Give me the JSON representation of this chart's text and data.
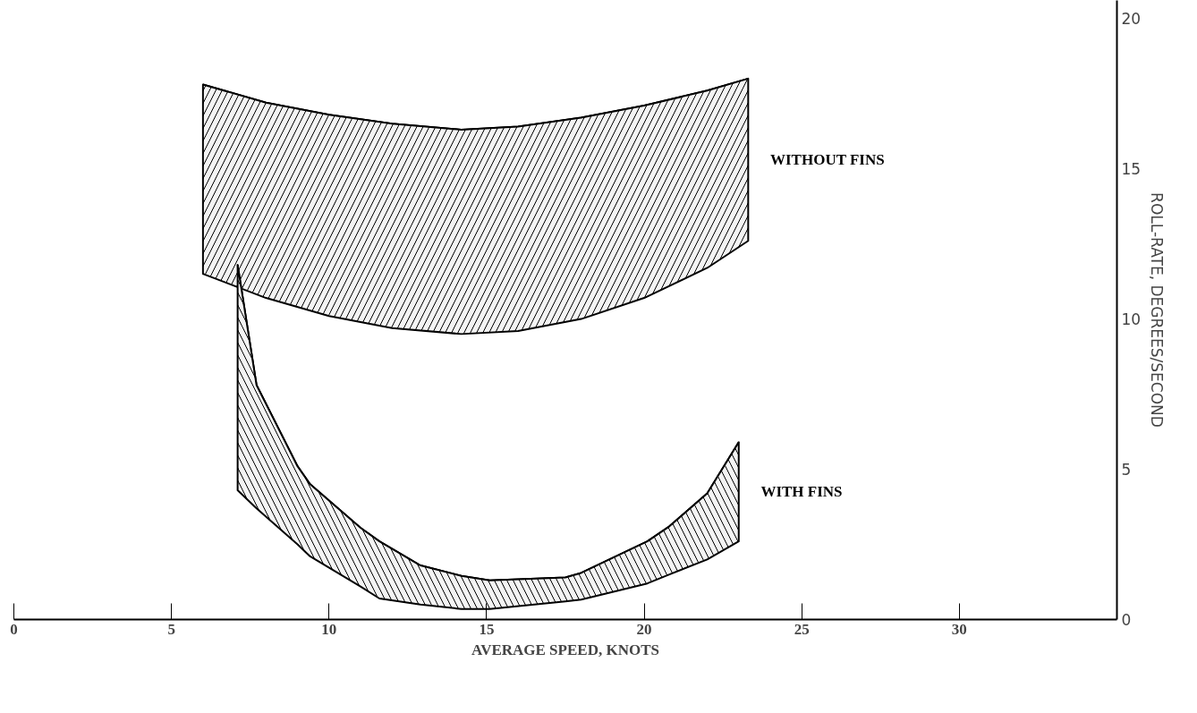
{
  "chart_data": {
    "type": "line",
    "xlabel": "AVERAGE SPEED, KNOTS",
    "ylabel": "ROLL-RATE, DEGREES/SECOND",
    "xlim": [
      0,
      35
    ],
    "ylim": [
      0,
      20.6
    ],
    "xticks": [
      0,
      5,
      10,
      15,
      20,
      25,
      30
    ],
    "yticks": [
      0,
      5,
      10,
      15,
      20
    ],
    "grid": false,
    "series": [
      {
        "name": "WITHOUT FINS",
        "color": "#000000",
        "x": [
          6,
          8,
          10,
          12,
          14.2,
          16,
          18,
          20,
          22,
          23.3
        ],
        "values": [
          17.8,
          17.2,
          16.8,
          16.5,
          16.3,
          16.4,
          16.7,
          17.1,
          17.6,
          18.0
        ],
        "upper": [
          17.8,
          17.2,
          16.8,
          16.5,
          16.3,
          16.4,
          16.7,
          17.1,
          17.6,
          18.0
        ],
        "lower": [
          11.5,
          10.7,
          10.1,
          9.7,
          9.5,
          9.6,
          10.0,
          10.7,
          11.7,
          12.6
        ]
      },
      {
        "name": "WITH FINS",
        "color": "#000000",
        "x": [
          7.1,
          7.7,
          9.0,
          9.4,
          11.0,
          11.6,
          12.9,
          14.2,
          15.1,
          17.5,
          18,
          20.1,
          20.8,
          22,
          23
        ],
        "values": [
          11.8,
          7.8,
          5.1,
          4.5,
          3.05,
          2.6,
          1.8,
          1.45,
          1.3,
          1.4,
          1.55,
          2.6,
          3.1,
          4.2,
          5.9
        ],
        "upper": [
          11.8,
          7.8,
          5.1,
          4.5,
          3.05,
          2.6,
          1.8,
          1.45,
          1.3,
          1.4,
          1.55,
          2.6,
          3.1,
          4.2,
          5.9
        ],
        "lower": [
          4.3,
          3.7,
          2.5,
          2.1,
          1.1,
          0.7,
          0.5,
          0.35,
          0.35,
          0.6,
          0.66,
          1.2,
          1.5,
          2.0,
          2.6
        ]
      }
    ]
  }
}
